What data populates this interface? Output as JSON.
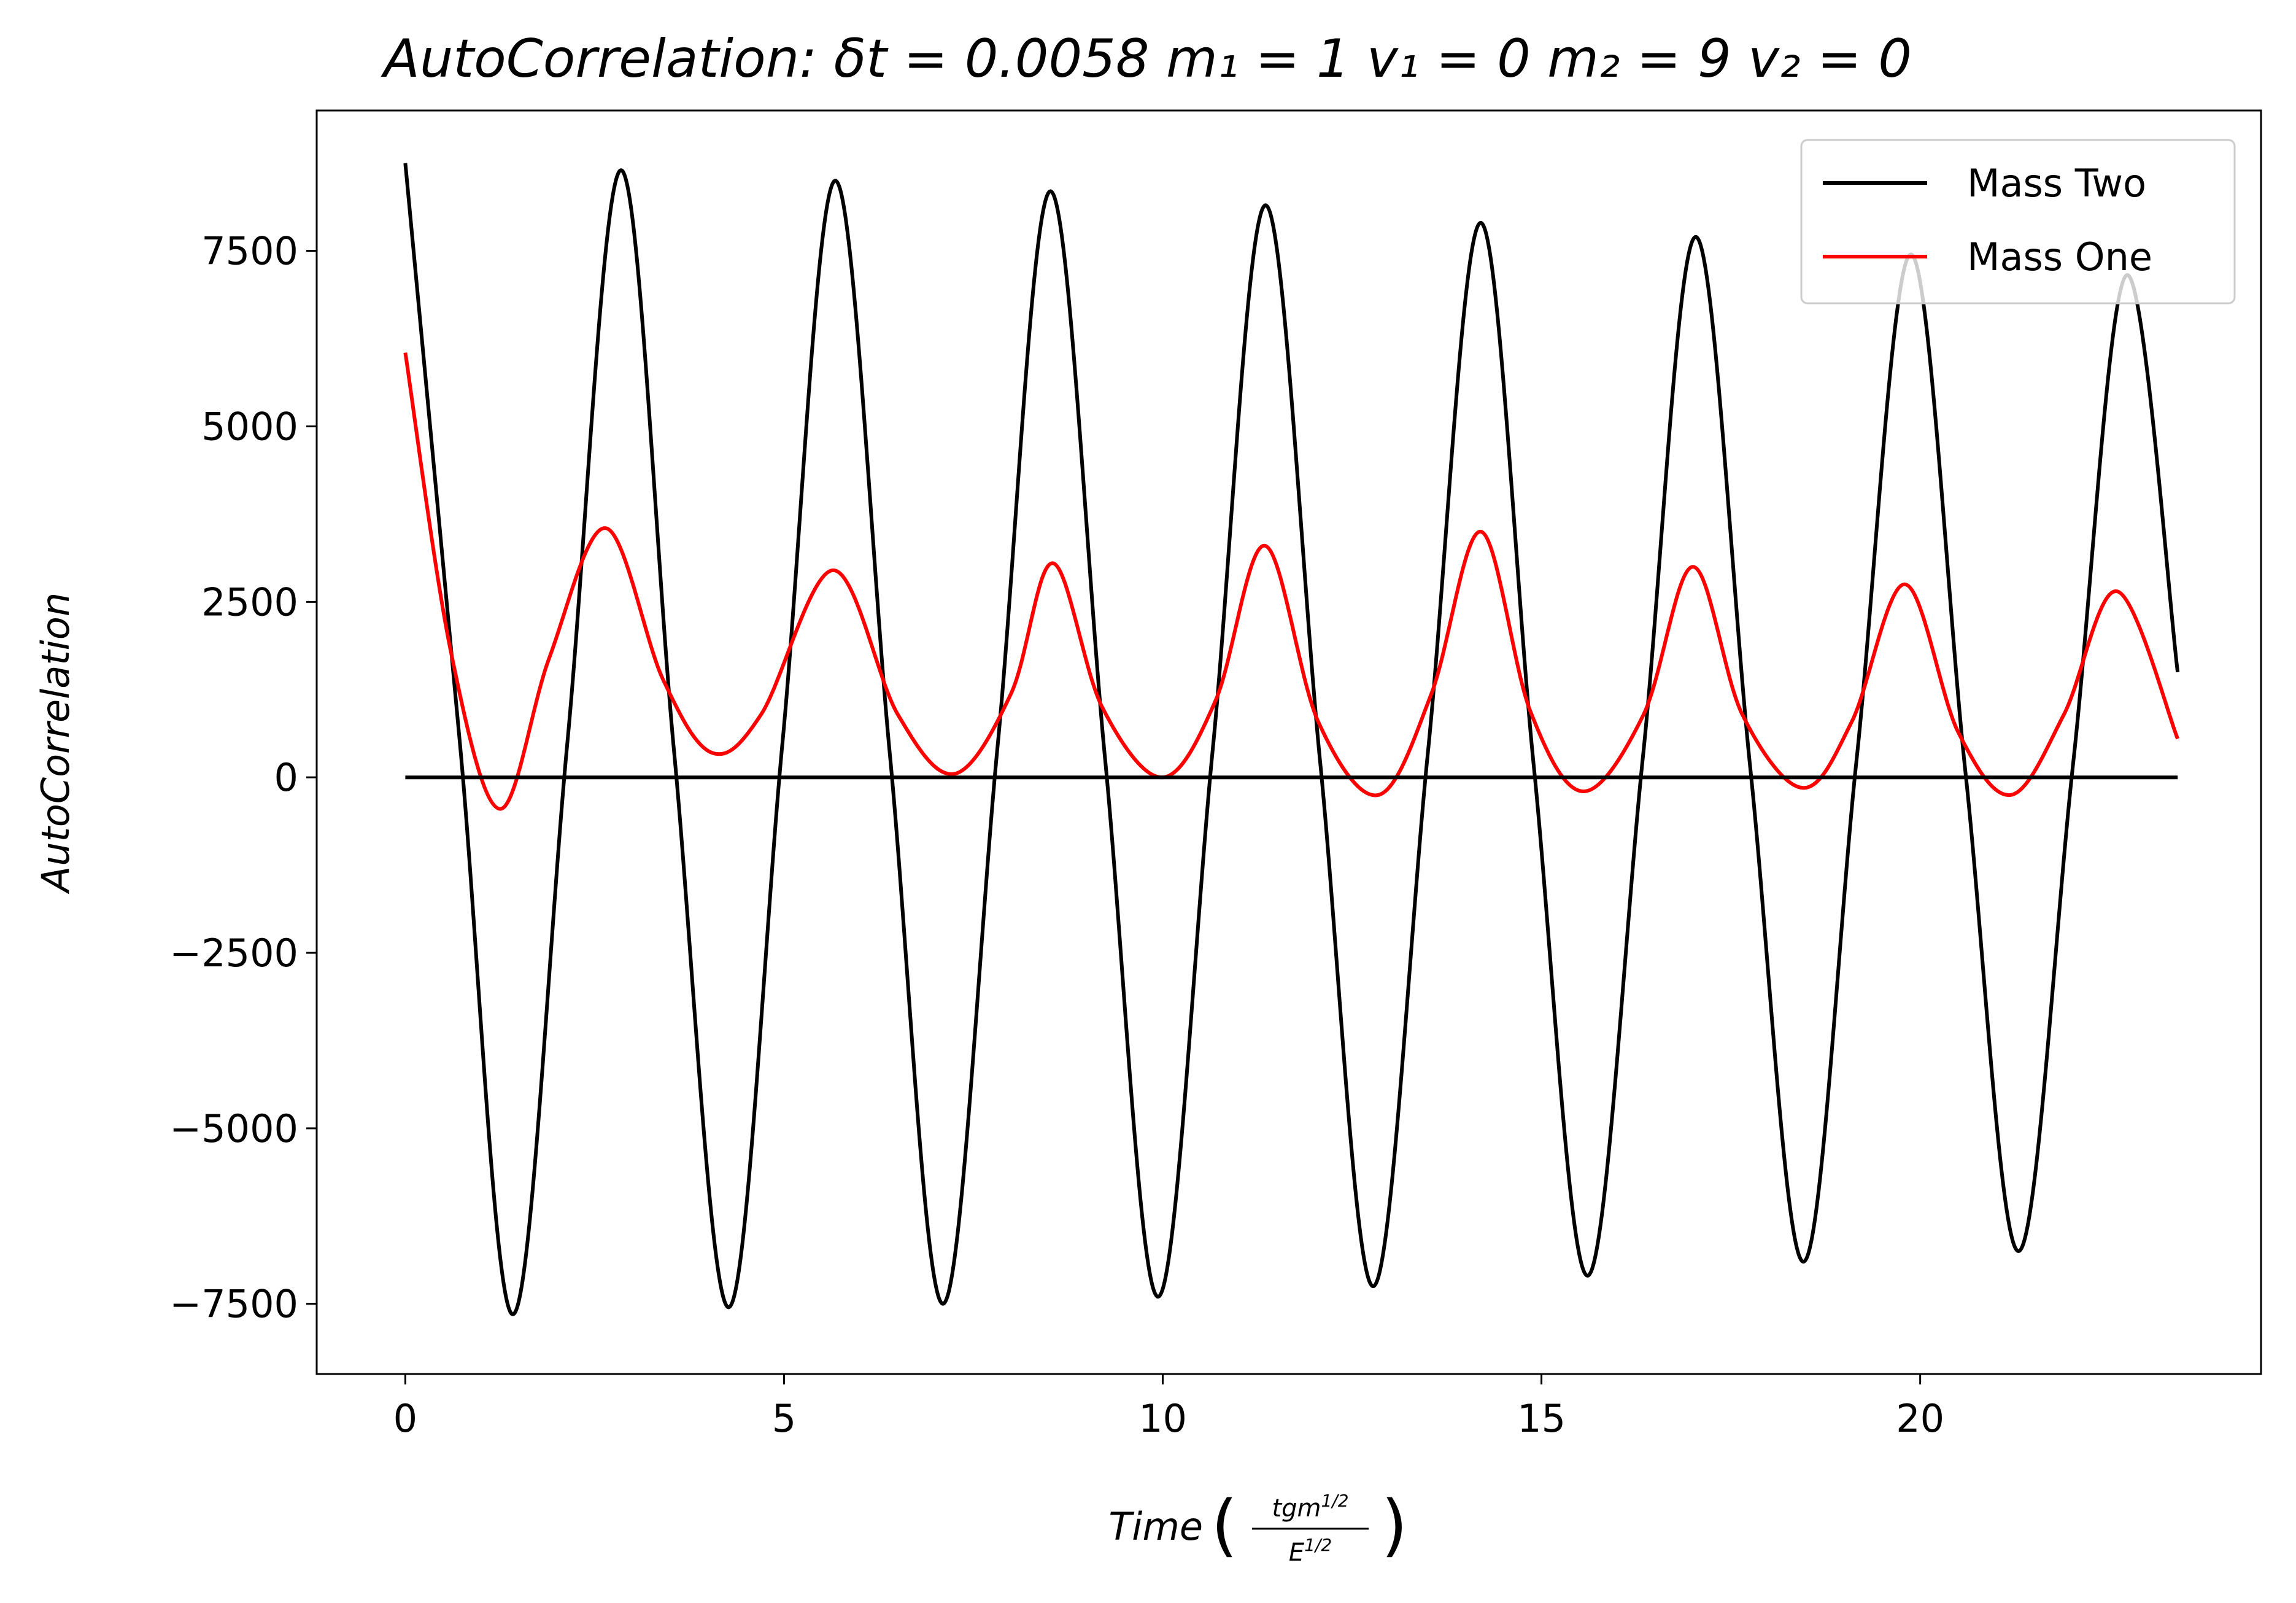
{
  "chart_data": {
    "type": "line",
    "title": "AutoCorrelation: δt = 0.0058 m₁ = 1 v₁ = 0 m₂ = 9 v₂ = 0",
    "xlabel": "Time",
    "xlabel_fraction": {
      "numerator": "tgm",
      "numerator_exp": "1/2",
      "denominator": "E",
      "denominator_exp": "1/2"
    },
    "ylabel": "AutoCorrelation",
    "xlim": [
      -1.17,
      24.5
    ],
    "ylim": [
      -8500,
      9500
    ],
    "x_ticks": [
      0,
      5,
      10,
      15,
      20
    ],
    "x_tick_labels": [
      "0",
      "5",
      "10",
      "15",
      "20"
    ],
    "y_ticks": [
      -7500,
      -5000,
      -2500,
      0,
      2500,
      5000,
      7500
    ],
    "y_tick_labels": [
      "−7500",
      "−5000",
      "−2500",
      "0",
      "2500",
      "5000",
      "7500"
    ],
    "grid": false,
    "legend_position": "top-right",
    "series": [
      {
        "name": "Mass Two",
        "color": "#000000",
        "x": [
          0,
          0.72,
          1.42,
          2.14,
          2.85,
          3.55,
          4.27,
          4.98,
          5.68,
          6.4,
          7.1,
          7.82,
          8.52,
          9.24,
          9.94,
          10.66,
          11.36,
          12.08,
          12.78,
          13.5,
          14.2,
          14.9,
          15.61,
          16.34,
          17.04,
          17.76,
          18.46,
          19.16,
          19.88,
          20.6,
          21.3,
          22.02,
          22.72,
          23.4
        ],
        "y": [
          8750,
          500,
          -7650,
          500,
          8650,
          350,
          -7550,
          500,
          8500,
          300,
          -7500,
          450,
          8350,
          250,
          -7400,
          400,
          8150,
          200,
          -7250,
          350,
          7900,
          150,
          -7100,
          300,
          7700,
          100,
          -6900,
          250,
          7450,
          50,
          -6750,
          200,
          7150,
          1500
        ]
      },
      {
        "name": "Mass One",
        "color": "#ff0000",
        "x": [
          0,
          0.6,
          1.25,
          1.9,
          2.65,
          3.4,
          4.05,
          4.7,
          5.65,
          6.5,
          7.25,
          8.0,
          8.55,
          9.2,
          10.0,
          10.7,
          11.35,
          12.05,
          12.85,
          13.55,
          14.2,
          14.85,
          15.55,
          16.35,
          17.0,
          17.65,
          18.45,
          19.1,
          19.8,
          20.5,
          21.2,
          21.9,
          22.6,
          23.4
        ],
        "y": [
          6050,
          1800,
          -450,
          1700,
          3550,
          1400,
          350,
          900,
          2950,
          900,
          50,
          1200,
          3050,
          1000,
          0,
          1100,
          3300,
          800,
          -250,
          1200,
          3500,
          950,
          -200,
          900,
          3000,
          900,
          -150,
          800,
          2750,
          650,
          -250,
          900,
          2650,
          550
        ]
      },
      {
        "name": "",
        "color": "#000000",
        "x": [
          0,
          23.4
        ],
        "y": [
          0,
          0
        ]
      }
    ]
  }
}
